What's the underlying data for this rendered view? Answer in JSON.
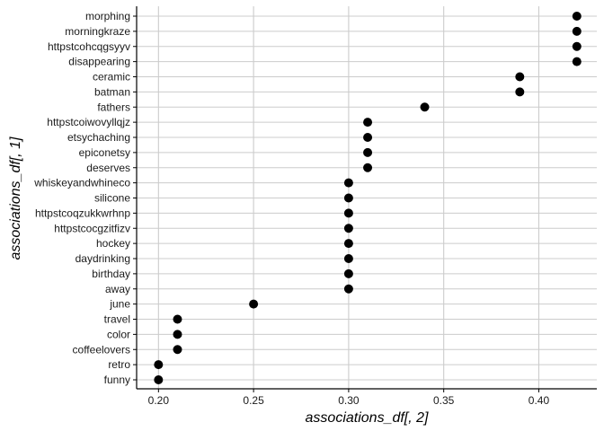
{
  "chart_data": {
    "type": "scatter",
    "title": "",
    "xlabel": "associations_df[, 2]",
    "ylabel": "associations_df[, 1]",
    "xlim": [
      0.1885,
      0.4305
    ],
    "x_ticks": [
      0.2,
      0.25,
      0.3,
      0.35,
      0.4
    ],
    "x_tick_labels": [
      "0.20",
      "0.25",
      "0.30",
      "0.35",
      "0.40"
    ],
    "grid": true,
    "categories": [
      "morphing",
      "morningkraze",
      "httpstcohcqgsyyv",
      "disappearing",
      "ceramic",
      "batman",
      "fathers",
      "httpstcoiwovyllqjz",
      "etsychaching",
      "epiconetsy",
      "deserves",
      "whiskeyandwhineco",
      "silicone",
      "httpstcoqzukkwrhnp",
      "httpstcocgzitfizv",
      "hockey",
      "daydrinking",
      "birthday",
      "away",
      "june",
      "travel",
      "color",
      "coffeelovers",
      "retro",
      "funny"
    ],
    "values": [
      0.42,
      0.42,
      0.42,
      0.42,
      0.39,
      0.39,
      0.34,
      0.31,
      0.31,
      0.31,
      0.31,
      0.3,
      0.3,
      0.3,
      0.3,
      0.3,
      0.3,
      0.3,
      0.3,
      0.25,
      0.21,
      0.21,
      0.21,
      0.2,
      0.2
    ],
    "colors": {
      "point": "#000000",
      "grid": "#cccccc",
      "axis": "#000000"
    }
  }
}
